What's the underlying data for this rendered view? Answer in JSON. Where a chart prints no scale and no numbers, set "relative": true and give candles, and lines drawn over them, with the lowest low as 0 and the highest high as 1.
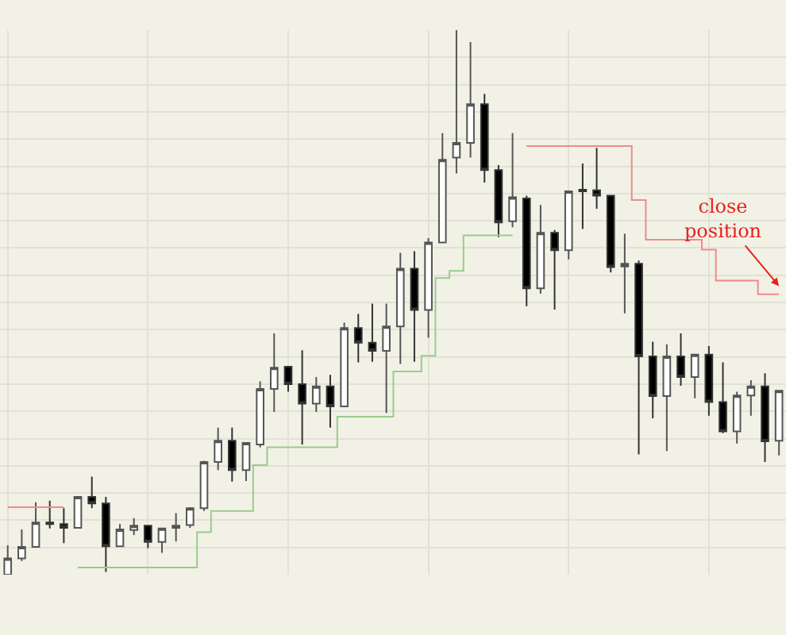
{
  "chart_data": {
    "type": "candlestick",
    "relative": true,
    "grid": true,
    "tick_labels": false,
    "categories": [
      null,
      null,
      null,
      null,
      null,
      null,
      null,
      null,
      null,
      null,
      null,
      null,
      null,
      null,
      null,
      null,
      null,
      null,
      null,
      null,
      null,
      null,
      null,
      null,
      null,
      null,
      null,
      null,
      null,
      null,
      null,
      null,
      null,
      null,
      null,
      null,
      null,
      null,
      null,
      null,
      null,
      null,
      null,
      null,
      null,
      null,
      null,
      null,
      null,
      null,
      null,
      null,
      null,
      null,
      null,
      null
    ],
    "ohlc": [
      [
        0,
        0.054,
        0,
        0.03
      ],
      [
        0.03,
        0.083,
        0.025,
        0.051
      ],
      [
        0.051,
        0.133,
        0.051,
        0.096
      ],
      [
        0.096,
        0.136,
        0.085,
        0.093
      ],
      [
        0.093,
        0.122,
        0.058,
        0.086
      ],
      [
        0.086,
        0.143,
        0.086,
        0.143
      ],
      [
        0.143,
        0.18,
        0.122,
        0.131
      ],
      [
        0.131,
        0.143,
        0.005,
        0.052
      ],
      [
        0.052,
        0.093,
        0.052,
        0.083
      ],
      [
        0.082,
        0.104,
        0.073,
        0.09
      ],
      [
        0.09,
        0.09,
        0.049,
        0.06
      ],
      [
        0.06,
        0.085,
        0.04,
        0.085
      ],
      [
        0.086,
        0.113,
        0.061,
        0.09
      ],
      [
        0.091,
        0.124,
        0.086,
        0.122
      ],
      [
        0.122,
        0.209,
        0.117,
        0.207
      ],
      [
        0.207,
        0.27,
        0.192,
        0.246
      ],
      [
        0.246,
        0.27,
        0.171,
        0.192
      ],
      [
        0.192,
        0.242,
        0.172,
        0.242
      ],
      [
        0.239,
        0.355,
        0.234,
        0.341
      ],
      [
        0.341,
        0.443,
        0.299,
        0.38
      ],
      [
        0.382,
        0.382,
        0.336,
        0.35
      ],
      [
        0.35,
        0.412,
        0.239,
        0.314
      ],
      [
        0.314,
        0.363,
        0.299,
        0.346
      ],
      [
        0.346,
        0.367,
        0.27,
        0.309
      ],
      [
        0.309,
        0.463,
        0.309,
        0.453
      ],
      [
        0.453,
        0.479,
        0.39,
        0.426
      ],
      [
        0.426,
        0.498,
        0.391,
        0.411
      ],
      [
        0.411,
        0.498,
        0.297,
        0.456
      ],
      [
        0.456,
        0.591,
        0.387,
        0.562
      ],
      [
        0.562,
        0.594,
        0.391,
        0.486
      ],
      [
        0.486,
        0.618,
        0.435,
        0.61
      ],
      [
        0.61,
        0.811,
        0.61,
        0.762
      ],
      [
        0.766,
        1,
        0.737,
        0.793
      ],
      [
        0.793,
        0.978,
        0.766,
        0.864
      ],
      [
        0.864,
        0.883,
        0.72,
        0.743
      ],
      [
        0.743,
        0.752,
        0.62,
        0.647
      ],
      [
        0.649,
        0.811,
        0.638,
        0.693
      ],
      [
        0.691,
        0.696,
        0.493,
        0.526
      ],
      [
        0.526,
        0.679,
        0.516,
        0.628
      ],
      [
        0.628,
        0.633,
        0.487,
        0.596
      ],
      [
        0.596,
        0.704,
        0.579,
        0.704
      ],
      [
        0.707,
        0.755,
        0.635,
        0.704
      ],
      [
        0.706,
        0.784,
        0.672,
        0.696
      ],
      [
        0.696,
        0.696,
        0.555,
        0.565
      ],
      [
        0.566,
        0.626,
        0.48,
        0.571
      ],
      [
        0.571,
        0.577,
        0.221,
        0.401
      ],
      [
        0.401,
        0.428,
        0.287,
        0.328
      ],
      [
        0.328,
        0.423,
        0.227,
        0.401
      ],
      [
        0.401,
        0.443,
        0.347,
        0.363
      ],
      [
        0.363,
        0.404,
        0.324,
        0.404
      ],
      [
        0.404,
        0.42,
        0.292,
        0.317
      ],
      [
        0.317,
        0.39,
        0.26,
        0.263
      ],
      [
        0.263,
        0.336,
        0.241,
        0.329
      ],
      [
        0.329,
        0.357,
        0.292,
        0.346
      ],
      [
        0.346,
        0.37,
        0.207,
        0.245
      ],
      [
        0.246,
        0.338,
        0.219,
        0.338
      ]
    ],
    "series": [
      {
        "type": "step",
        "color": "#f08a8a",
        "values": [
          0.124,
          0.124,
          0.124,
          0.124,
          0.124,
          null,
          null,
          null,
          null,
          null,
          null,
          null,
          null,
          null,
          null,
          null,
          null,
          null,
          null,
          null,
          null,
          null,
          null,
          null,
          null,
          null,
          null,
          null,
          null,
          null,
          null,
          null,
          null,
          null,
          null,
          null,
          null,
          null,
          null,
          null,
          null,
          null,
          null,
          null,
          null,
          null,
          null,
          null,
          null,
          null,
          null,
          null,
          null,
          null,
          null,
          null
        ]
      },
      {
        "type": "step",
        "color": "#98cc8c",
        "values": [
          null,
          null,
          null,
          null,
          null,
          0.013,
          0.013,
          0.013,
          0.013,
          0.013,
          0.013,
          0.013,
          0.013,
          0.013,
          0.078,
          0.117,
          0.117,
          0.117,
          0.201,
          0.234,
          0.234,
          0.234,
          0.234,
          0.234,
          0.29,
          0.29,
          0.29,
          0.29,
          0.373,
          0.373,
          0.402,
          0.545,
          0.558,
          0.623,
          0.623,
          0.623,
          0.623,
          null,
          null,
          null,
          null,
          null,
          null,
          null,
          null,
          null,
          null,
          null,
          null,
          null,
          null,
          null,
          null,
          null,
          null,
          null
        ]
      },
      {
        "type": "step",
        "color": "#f08a8a",
        "values": [
          null,
          null,
          null,
          null,
          null,
          null,
          null,
          null,
          null,
          null,
          null,
          null,
          null,
          null,
          null,
          null,
          null,
          null,
          null,
          null,
          null,
          null,
          null,
          null,
          null,
          null,
          null,
          null,
          null,
          null,
          null,
          null,
          null,
          null,
          null,
          null,
          null,
          0.787,
          0.787,
          0.787,
          0.787,
          0.787,
          0.787,
          0.787,
          0.787,
          0.688,
          0.615,
          0.615,
          0.615,
          0.615,
          0.597,
          0.54,
          0.54,
          0.54,
          0.515,
          0.515
        ]
      }
    ],
    "annotations": [
      "close position"
    ]
  }
}
